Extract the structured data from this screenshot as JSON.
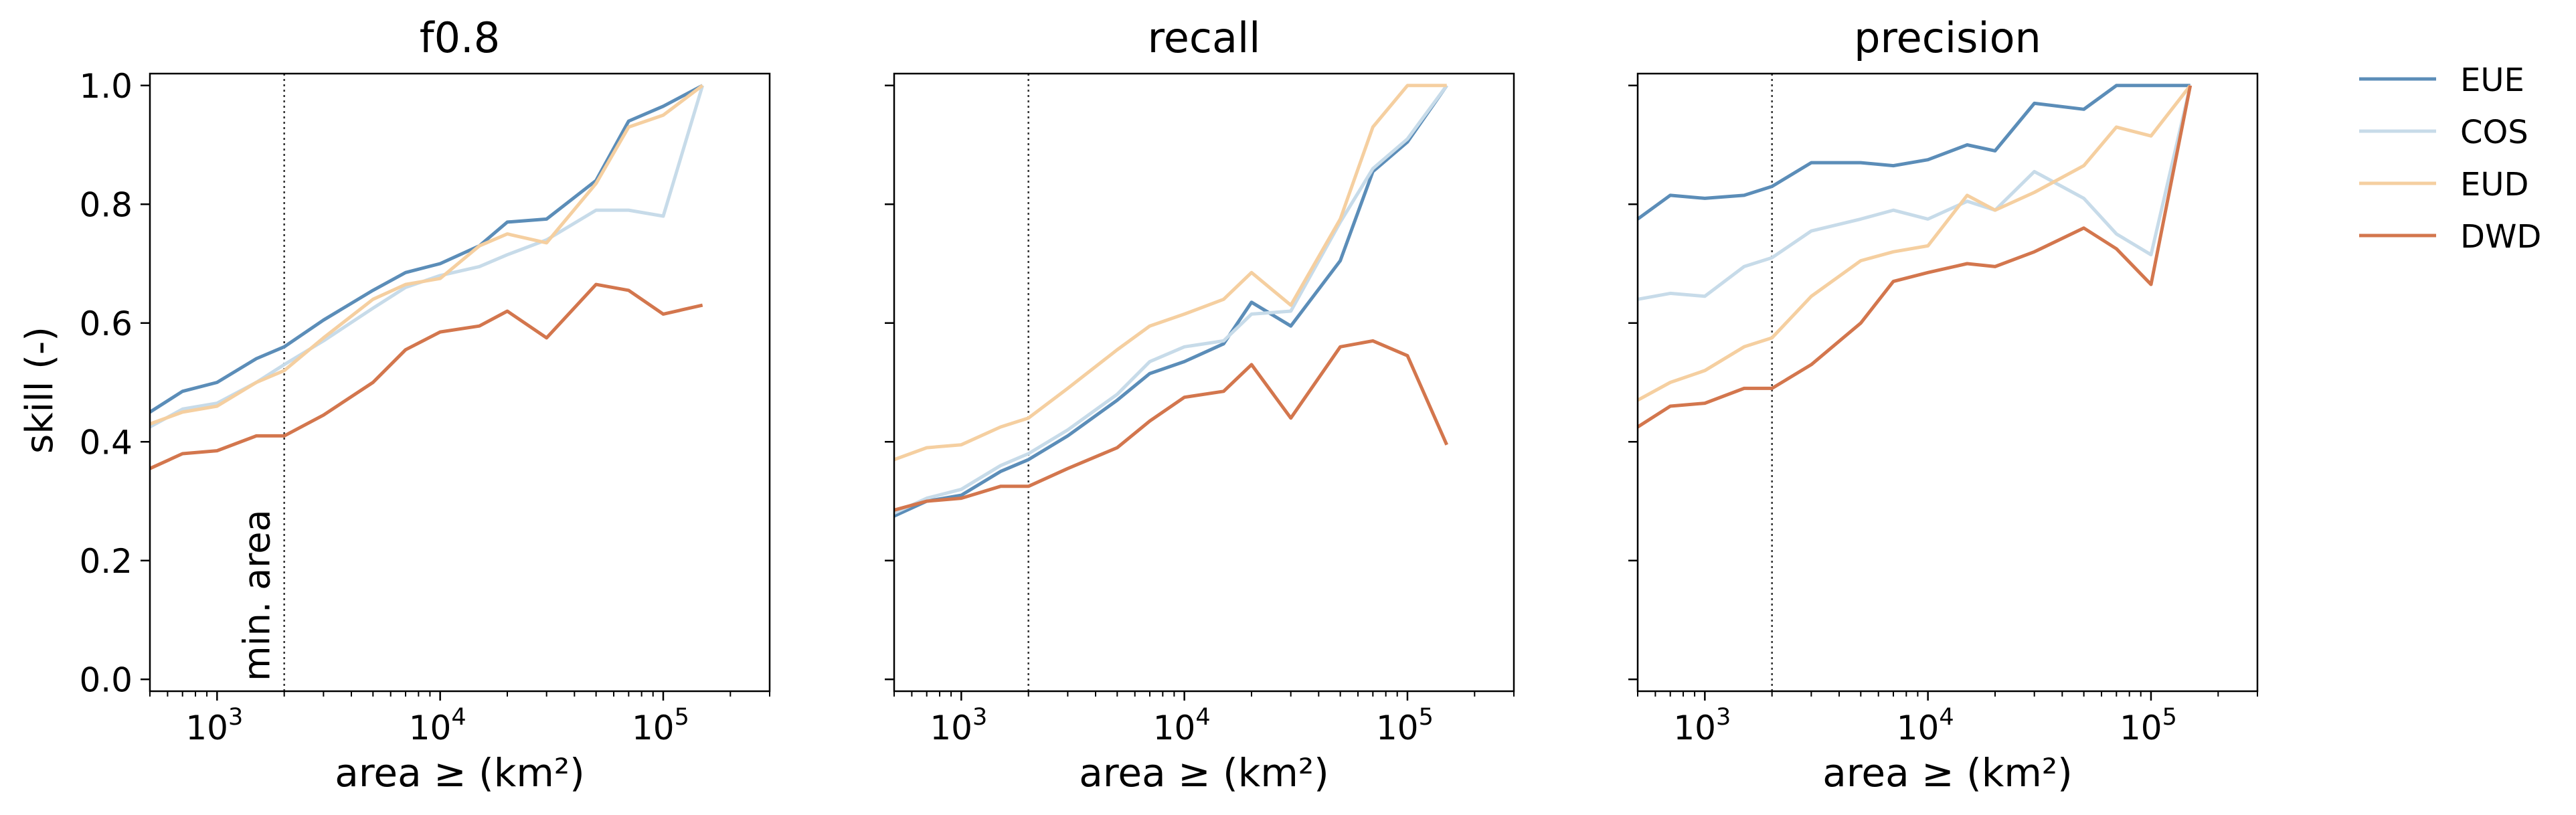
{
  "figure": {
    "shared_ylabel": "skill (-)",
    "shared_xlabel": "area ≥ (km²)",
    "min_area_label": "min. area",
    "legend": [
      "EUE",
      "COS",
      "EUD",
      "DWD"
    ]
  },
  "chart_data": [
    {
      "type": "line",
      "title": "f0.8",
      "xlabel": "area ≥ (km²)",
      "ylabel": "skill (-)",
      "xscale": "log",
      "xlim": [
        500,
        300000
      ],
      "ylim": [
        -0.02,
        1.02
      ],
      "x_ticks": [
        1000,
        10000,
        100000
      ],
      "x_tick_labels": [
        "10^3",
        "10^4",
        "10^5"
      ],
      "y_ticks": [
        0.0,
        0.2,
        0.4,
        0.6,
        0.8,
        1.0
      ],
      "y_tick_labels": [
        "0.0",
        "0.2",
        "0.4",
        "0.6",
        "0.8",
        "1.0"
      ],
      "min_area": 2000,
      "legend_position": "outside-right",
      "grid": false,
      "x": [
        500,
        700,
        1000,
        1500,
        2000,
        3000,
        5000,
        7000,
        10000,
        15000,
        20000,
        30000,
        50000,
        70000,
        100000,
        150000
      ],
      "series": [
        {
          "name": "EUE",
          "color": "#5b8db8",
          "values": [
            0.45,
            0.485,
            0.5,
            0.54,
            0.56,
            0.605,
            0.655,
            0.685,
            0.7,
            0.73,
            0.77,
            0.775,
            0.84,
            0.94,
            0.965,
            1.0
          ]
        },
        {
          "name": "COS",
          "color": "#c7dbe9",
          "values": [
            0.425,
            0.455,
            0.465,
            0.5,
            0.53,
            0.57,
            0.625,
            0.66,
            0.68,
            0.695,
            0.715,
            0.74,
            0.79,
            0.79,
            0.78,
            1.0
          ]
        },
        {
          "name": "EUD",
          "color": "#f5cfa0",
          "values": [
            0.43,
            0.45,
            0.46,
            0.5,
            0.52,
            0.575,
            0.64,
            0.665,
            0.675,
            0.73,
            0.75,
            0.735,
            0.835,
            0.93,
            0.95,
            1.0
          ]
        },
        {
          "name": "DWD",
          "color": "#d3764d",
          "values": [
            0.355,
            0.38,
            0.385,
            0.41,
            0.41,
            0.445,
            0.5,
            0.555,
            0.585,
            0.595,
            0.62,
            0.575,
            0.665,
            0.655,
            0.615,
            0.63
          ]
        }
      ]
    },
    {
      "type": "line",
      "title": "recall",
      "xlabel": "area ≥ (km²)",
      "xscale": "log",
      "xlim": [
        500,
        300000
      ],
      "ylim": [
        -0.02,
        1.02
      ],
      "x_ticks": [
        1000,
        10000,
        100000
      ],
      "x_tick_labels": [
        "10^3",
        "10^4",
        "10^5"
      ],
      "y_ticks": [
        0.0,
        0.2,
        0.4,
        0.6,
        0.8,
        1.0
      ],
      "min_area": 2000,
      "grid": false,
      "x": [
        500,
        700,
        1000,
        1500,
        2000,
        3000,
        5000,
        7000,
        10000,
        15000,
        20000,
        30000,
        50000,
        70000,
        100000,
        150000
      ],
      "series": [
        {
          "name": "EUE",
          "color": "#5b8db8",
          "values": [
            0.275,
            0.3,
            0.31,
            0.35,
            0.37,
            0.41,
            0.47,
            0.515,
            0.535,
            0.565,
            0.635,
            0.595,
            0.705,
            0.855,
            0.905,
            1.0
          ]
        },
        {
          "name": "COS",
          "color": "#c7dbe9",
          "values": [
            0.28,
            0.305,
            0.32,
            0.36,
            0.38,
            0.42,
            0.48,
            0.535,
            0.56,
            0.57,
            0.615,
            0.62,
            0.77,
            0.86,
            0.91,
            1.0
          ]
        },
        {
          "name": "EUD",
          "color": "#f5cfa0",
          "values": [
            0.37,
            0.39,
            0.395,
            0.425,
            0.44,
            0.49,
            0.555,
            0.595,
            0.615,
            0.64,
            0.685,
            0.63,
            0.775,
            0.93,
            1.0,
            1.0
          ]
        },
        {
          "name": "DWD",
          "color": "#d3764d",
          "values": [
            0.285,
            0.3,
            0.305,
            0.325,
            0.325,
            0.355,
            0.39,
            0.435,
            0.475,
            0.485,
            0.53,
            0.44,
            0.56,
            0.57,
            0.545,
            0.395
          ]
        }
      ]
    },
    {
      "type": "line",
      "title": "precision",
      "xlabel": "area ≥ (km²)",
      "xscale": "log",
      "xlim": [
        500,
        300000
      ],
      "ylim": [
        -0.02,
        1.02
      ],
      "x_ticks": [
        1000,
        10000,
        100000
      ],
      "x_tick_labels": [
        "10^3",
        "10^4",
        "10^5"
      ],
      "y_ticks": [
        0.0,
        0.2,
        0.4,
        0.6,
        0.8,
        1.0
      ],
      "min_area": 2000,
      "grid": false,
      "x": [
        500,
        700,
        1000,
        1500,
        2000,
        3000,
        5000,
        7000,
        10000,
        15000,
        20000,
        30000,
        50000,
        70000,
        100000,
        150000
      ],
      "series": [
        {
          "name": "EUE",
          "color": "#5b8db8",
          "values": [
            0.775,
            0.815,
            0.81,
            0.815,
            0.83,
            0.87,
            0.87,
            0.865,
            0.875,
            0.9,
            0.89,
            0.97,
            0.96,
            1.0,
            1.0,
            1.0
          ]
        },
        {
          "name": "COS",
          "color": "#c7dbe9",
          "values": [
            0.64,
            0.65,
            0.645,
            0.695,
            0.71,
            0.755,
            0.775,
            0.79,
            0.775,
            0.805,
            0.79,
            0.855,
            0.81,
            0.75,
            0.715,
            1.0
          ]
        },
        {
          "name": "EUD",
          "color": "#f5cfa0",
          "values": [
            0.47,
            0.5,
            0.52,
            0.56,
            0.575,
            0.645,
            0.705,
            0.72,
            0.73,
            0.815,
            0.79,
            0.82,
            0.865,
            0.93,
            0.915,
            1.0
          ]
        },
        {
          "name": "DWD",
          "color": "#d3764d",
          "values": [
            0.425,
            0.46,
            0.465,
            0.49,
            0.49,
            0.53,
            0.6,
            0.67,
            0.685,
            0.7,
            0.695,
            0.72,
            0.76,
            0.725,
            0.665,
            1.0
          ]
        }
      ]
    }
  ]
}
